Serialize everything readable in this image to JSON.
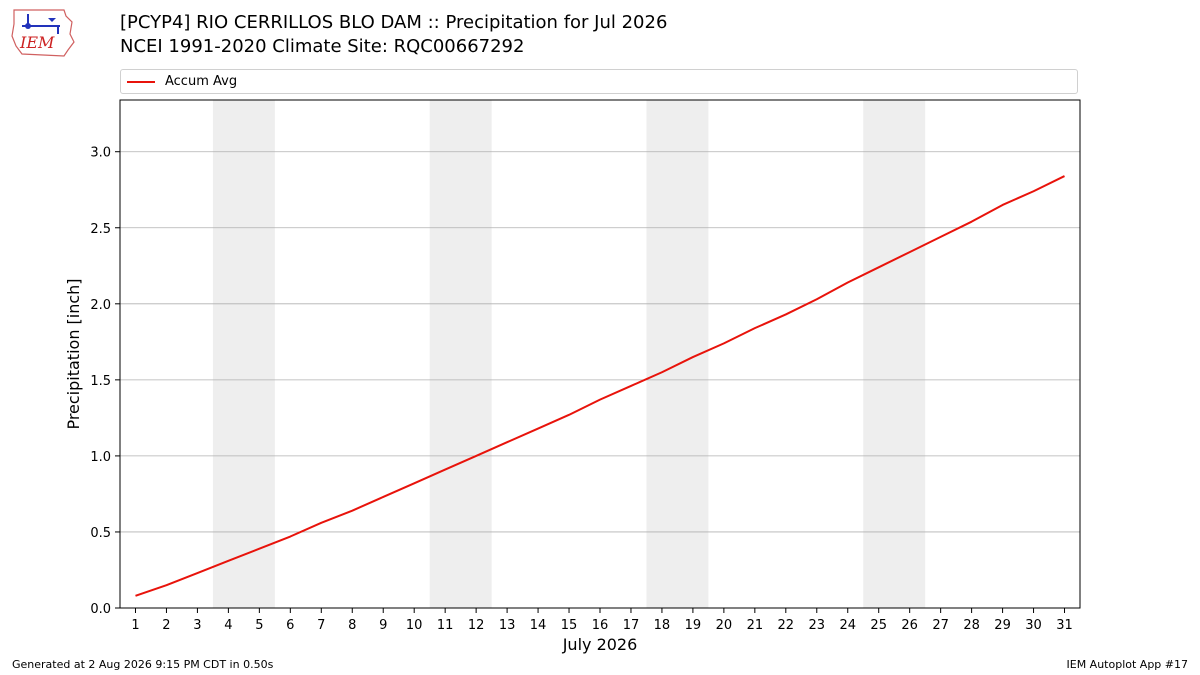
{
  "header": {
    "title_line1": "[PCYP4] RIO CERRILLOS BLO DAM :: Precipitation for Jul 2026",
    "title_line2": "NCEI 1991-2020 Climate Site: RQC00667292"
  },
  "logo": {
    "text": "IEM"
  },
  "legend": {
    "series_label": "Accum Avg"
  },
  "footer": {
    "generated": "Generated at 2 Aug 2026 9:15 PM CDT in 0.50s",
    "app": "IEM Autoplot App #17"
  },
  "colors": {
    "series": "#e8130b",
    "weekend_band": "#eeeeee",
    "grid": "#b0b0b0"
  },
  "chart_data": {
    "type": "line",
    "title": "[PCYP4] RIO CERRILLOS BLO DAM :: Precipitation for Jul 2026",
    "subtitle": "NCEI 1991-2020 Climate Site: RQC00667292",
    "xlabel": "July 2026",
    "ylabel": "Precipitation [inch]",
    "x": [
      1,
      2,
      3,
      4,
      5,
      6,
      7,
      8,
      9,
      10,
      11,
      12,
      13,
      14,
      15,
      16,
      17,
      18,
      19,
      20,
      21,
      22,
      23,
      24,
      25,
      26,
      27,
      28,
      29,
      30,
      31
    ],
    "x_ticks": [
      "1",
      "2",
      "3",
      "4",
      "5",
      "6",
      "7",
      "8",
      "9",
      "10",
      "11",
      "12",
      "13",
      "14",
      "15",
      "16",
      "17",
      "18",
      "19",
      "20",
      "21",
      "22",
      "23",
      "24",
      "25",
      "26",
      "27",
      "28",
      "29",
      "30",
      "31"
    ],
    "y_ticks": [
      "0.0",
      "0.5",
      "1.0",
      "1.5",
      "2.0",
      "2.5",
      "3.0"
    ],
    "xlim": [
      0.5,
      31.5
    ],
    "ylim": [
      0,
      3.34
    ],
    "grid": "horizontal",
    "legend_position": "top",
    "shaded_bands": [
      [
        3.5,
        5.5
      ],
      [
        10.5,
        12.5
      ],
      [
        17.5,
        19.5
      ],
      [
        24.5,
        26.5
      ]
    ],
    "series": [
      {
        "name": "Accum Avg",
        "values": [
          0.08,
          0.15,
          0.23,
          0.31,
          0.39,
          0.47,
          0.56,
          0.64,
          0.73,
          0.82,
          0.91,
          1.0,
          1.09,
          1.18,
          1.27,
          1.37,
          1.46,
          1.55,
          1.65,
          1.74,
          1.84,
          1.93,
          2.03,
          2.14,
          2.24,
          2.34,
          2.44,
          2.54,
          2.65,
          2.74,
          2.84
        ]
      }
    ]
  }
}
